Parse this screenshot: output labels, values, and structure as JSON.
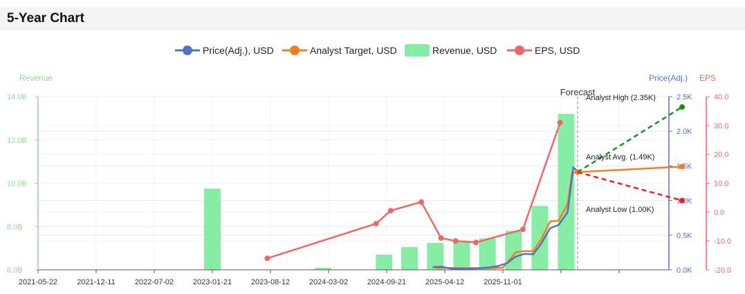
{
  "header": {
    "title": "5-Year Chart"
  },
  "colors": {
    "price": "#5470c6",
    "target": "#f47d20",
    "revenue": "#87eca4",
    "eps": "#ee6666",
    "left_axis": "#9bd19b",
    "high": "#1a8f1a",
    "low": "#e8201e"
  },
  "chart_data": {
    "type": "combo",
    "legend": [
      "Price(Adj.), USD",
      "Analyst Target, USD",
      "Revenue, USD",
      "EPS, USD"
    ],
    "axes": {
      "left": {
        "title": "Revenue",
        "ticks": [
          "14.0B",
          "12.0B",
          "10.0B",
          "8.0B",
          "6.0B"
        ],
        "range": [
          6.0,
          14.0
        ]
      },
      "right1": {
        "title": "Price(Adj.)",
        "ticks": [
          "2.5K",
          "2.0K",
          "1.5K",
          "1.0K",
          "0.5K",
          "0.0K"
        ],
        "range": [
          0,
          2500
        ]
      },
      "right2": {
        "title": "EPS",
        "ticks": [
          "40.0",
          "30.0",
          "20.0",
          "10.0",
          "0.0",
          "-10.0",
          "-20.0"
        ],
        "range": [
          -20,
          40
        ]
      }
    },
    "x_ticks": [
      "2021-05-22",
      "2021-12-11",
      "2022-07-02",
      "2023-01-21",
      "2023-08-12",
      "2024-03-02",
      "2024-09-21",
      "2025-04-12",
      "2025-11-01"
    ],
    "revenue": {
      "dates": [
        "2023-01-21",
        "2024-02-12",
        "2024-09-12",
        "2024-12-10",
        "2025-03-10",
        "2025-06-10",
        "2025-09-08",
        "2025-12-08",
        "2026-03-10",
        "2026-06-10"
      ],
      "values": [
        9.75,
        6.1,
        6.7,
        7.05,
        7.25,
        7.35,
        7.45,
        7.8,
        8.95,
        13.2
      ]
    },
    "eps": {
      "dates": [
        "2023-08-01",
        "2024-08-15",
        "2024-10-05",
        "2025-01-20",
        "2025-03-30",
        "2025-05-20",
        "2025-07-30",
        "2026-01-10",
        "2026-05-20"
      ],
      "values": [
        -16.0,
        -4.0,
        0.5,
        3.5,
        -9.0,
        -10.0,
        -10.5,
        -6.0,
        31.0
      ]
    },
    "price": {
      "dates": [
        "2025-03-01",
        "2025-04-01",
        "2025-05-01",
        "2025-06-15",
        "2025-08-01",
        "2025-09-15",
        "2025-10-15",
        "2025-11-15",
        "2025-12-15",
        "2026-01-15",
        "2026-02-15",
        "2026-03-15",
        "2026-04-15",
        "2026-05-15",
        "2026-06-15",
        "2026-07-05",
        "2026-07-20"
      ],
      "values": [
        40,
        45,
        20,
        15,
        20,
        35,
        55,
        95,
        190,
        230,
        225,
        380,
        600,
        650,
        830,
        1480,
        1420
      ]
    },
    "target": {
      "dates": [
        "2025-03-10",
        "2025-06-01",
        "2025-09-01",
        "2025-11-01",
        "2025-12-15",
        "2026-01-15",
        "2026-02-15",
        "2026-03-15",
        "2026-04-15",
        "2026-05-15",
        "2026-06-15",
        "2026-07-01",
        "2026-07-20"
      ],
      "values": [
        30,
        25,
        25,
        30,
        250,
        270,
        270,
        440,
        700,
        710,
        950,
        1400,
        1410
      ]
    },
    "forecast": {
      "label": "Forecast",
      "date": "2026-07-20",
      "end_date": "2027-07-20",
      "start_value": 1410,
      "high": {
        "label": "Analyst High (2.35K)",
        "value": 2350
      },
      "avg": {
        "label": "Analyst Avg. (1.49K)",
        "value": 1490
      },
      "low": {
        "label": "Analyst Low (1.00K)",
        "value": 1000
      }
    }
  }
}
